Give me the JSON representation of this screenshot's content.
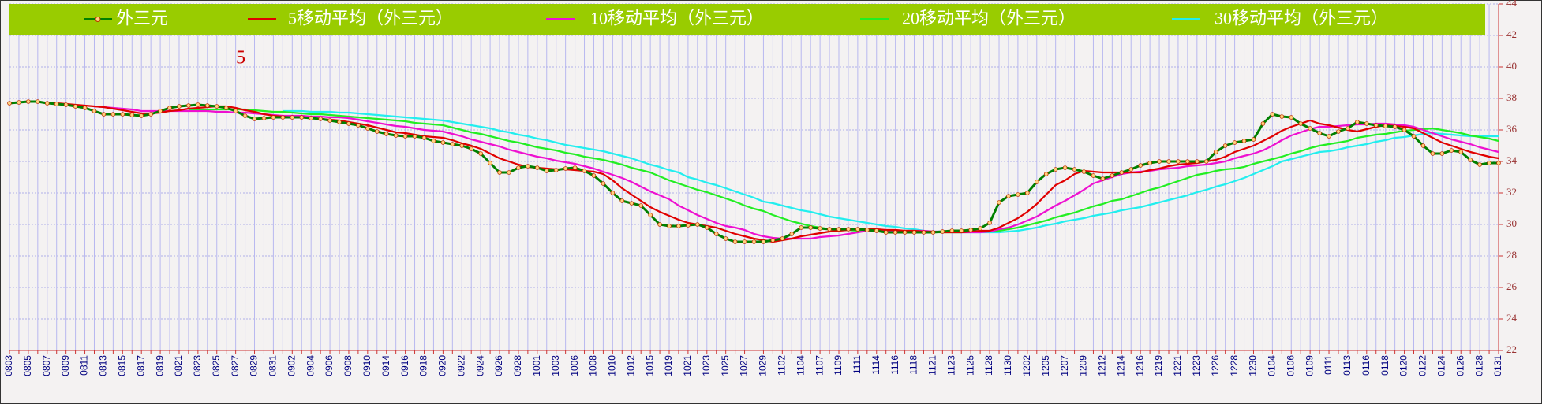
{
  "chart_data": {
    "type": "line",
    "annotation": "5",
    "categories": [
      "0803",
      null,
      "0805",
      null,
      "0807",
      null,
      "0809",
      null,
      "0811",
      null,
      "0813",
      null,
      "0815",
      null,
      "0817",
      null,
      "0819",
      null,
      "0821",
      null,
      "0823",
      null,
      "0825",
      null,
      "0827",
      null,
      "0829",
      null,
      "0831",
      null,
      "0902",
      null,
      "0904",
      null,
      "0906",
      null,
      "0908",
      null,
      "0910",
      null,
      "0914",
      null,
      "0916",
      null,
      "0918",
      null,
      "0920",
      null,
      "0922",
      null,
      "0924",
      null,
      "0926",
      null,
      "0928",
      null,
      "1001",
      null,
      "1003",
      null,
      "1006",
      null,
      "1008",
      null,
      "1010",
      null,
      "1012",
      null,
      "1015",
      null,
      "1019",
      null,
      "1021",
      null,
      "1023",
      null,
      "1025",
      null,
      "1027",
      null,
      "1029",
      null,
      "1102",
      null,
      "1104",
      null,
      "1107",
      null,
      "1109",
      null,
      "1111",
      null,
      "1114",
      null,
      "1116",
      null,
      "1118",
      null,
      "1121",
      null,
      "1123",
      null,
      "1125",
      null,
      "1128",
      null,
      "1130",
      null,
      "1202",
      null,
      "1205",
      null,
      "1207",
      null,
      "1209",
      null,
      "1212",
      null,
      "1214",
      null,
      "1216",
      null,
      "1219",
      null,
      "1221",
      null,
      "1223",
      null,
      "1226",
      null,
      "1228",
      null,
      "1230",
      null,
      "0104",
      null,
      "0106",
      null,
      "0109",
      null,
      "0111",
      null,
      "0113",
      null,
      "0116",
      null,
      "0118",
      null,
      "0120",
      null,
      "0122",
      null,
      "0124",
      null,
      "0126",
      null,
      "0128",
      null,
      "0131"
    ],
    "series": [
      {
        "name": "外三元",
        "color": "#008000",
        "markers": true,
        "values": [
          37.7,
          37.75,
          37.8,
          37.8,
          37.7,
          37.65,
          37.6,
          37.5,
          37.4,
          37.2,
          37.0,
          37.0,
          37.0,
          36.95,
          36.9,
          37.0,
          37.2,
          37.4,
          37.5,
          37.55,
          37.6,
          37.55,
          37.5,
          37.4,
          37.2,
          36.9,
          36.7,
          36.75,
          36.8,
          36.8,
          36.8,
          36.8,
          36.75,
          36.7,
          36.6,
          36.5,
          36.4,
          36.3,
          36.1,
          35.9,
          35.75,
          35.65,
          35.6,
          35.6,
          35.5,
          35.3,
          35.2,
          35.1,
          35.0,
          34.8,
          34.5,
          33.9,
          33.3,
          33.3,
          33.6,
          33.7,
          33.6,
          33.4,
          33.45,
          33.55,
          33.6,
          33.4,
          33.1,
          32.6,
          32.0,
          31.5,
          31.35,
          31.2,
          30.6,
          30.0,
          29.9,
          29.9,
          29.95,
          30.0,
          29.8,
          29.4,
          29.1,
          28.9,
          28.9,
          28.9,
          28.9,
          29.0,
          29.1,
          29.4,
          29.8,
          29.8,
          29.75,
          29.7,
          29.7,
          29.7,
          29.7,
          29.65,
          29.6,
          29.5,
          29.5,
          29.5,
          29.5,
          29.5,
          29.5,
          29.55,
          29.6,
          29.6,
          29.65,
          29.75,
          30.1,
          31.4,
          31.8,
          31.9,
          32.0,
          32.7,
          33.2,
          33.5,
          33.6,
          33.5,
          33.35,
          33.1,
          32.9,
          33.1,
          33.3,
          33.5,
          33.75,
          33.9,
          34.0,
          34.0,
          34.0,
          34.0,
          34.0,
          34.0,
          34.6,
          35.0,
          35.2,
          35.3,
          35.4,
          36.4,
          37.0,
          36.85,
          36.8,
          36.4,
          36.1,
          35.8,
          35.6,
          35.9,
          36.1,
          36.5,
          36.4,
          36.3,
          36.25,
          36.2,
          36.0,
          35.6,
          35.0,
          34.5,
          34.5,
          34.7,
          34.6,
          34.1,
          33.8,
          33.9,
          33.9
        ]
      },
      {
        "name": "5移动平均（外三元）",
        "color": "#e00000",
        "values": [
          null,
          null,
          null,
          null,
          37.75,
          37.7,
          37.65,
          37.6,
          37.55,
          37.5,
          37.45,
          37.35,
          37.25,
          37.15,
          37.05,
          37.05,
          37.1,
          37.2,
          37.25,
          37.35,
          37.4,
          37.45,
          37.5,
          37.5,
          37.4,
          37.25,
          37.15,
          37.0,
          36.9,
          36.85,
          36.8,
          36.8,
          36.75,
          36.7,
          36.65,
          36.6,
          36.5,
          36.4,
          36.3,
          36.15,
          36.0,
          35.85,
          35.8,
          35.7,
          35.6,
          35.55,
          35.5,
          35.35,
          35.15,
          35.0,
          34.8,
          34.5,
          34.2,
          34.0,
          33.8,
          33.65,
          33.6,
          33.55,
          33.5,
          33.5,
          33.45,
          33.4,
          33.35,
          33.2,
          32.8,
          32.3,
          31.9,
          31.5,
          31.1,
          30.8,
          30.55,
          30.3,
          30.1,
          30.0,
          29.9,
          29.8,
          29.6,
          29.4,
          29.25,
          29.1,
          29.0,
          28.9,
          29.0,
          29.1,
          29.25,
          29.35,
          29.45,
          29.55,
          29.6,
          29.65,
          29.7,
          29.7,
          29.7,
          29.65,
          29.65,
          29.6,
          29.6,
          29.55,
          29.55,
          29.5,
          29.5,
          29.5,
          29.55,
          29.6,
          29.6,
          29.8,
          30.1,
          30.4,
          30.8,
          31.3,
          31.9,
          32.5,
          32.8,
          33.2,
          33.4,
          33.35,
          33.3,
          33.3,
          33.3,
          33.3,
          33.3,
          33.45,
          33.55,
          33.7,
          33.8,
          33.85,
          33.9,
          34.0,
          34.1,
          34.3,
          34.6,
          34.8,
          35.0,
          35.3,
          35.6,
          35.95,
          36.2,
          36.4,
          36.6,
          36.4,
          36.3,
          36.15,
          36.0,
          35.9,
          36.05,
          36.2,
          36.3,
          36.25,
          36.2,
          36.1,
          35.8,
          35.5,
          35.2,
          35.0,
          34.8,
          34.6,
          34.45,
          34.3,
          34.2
        ]
      },
      {
        "name": "10移动平均（外三元）",
        "color": "#ee10d0",
        "values": [
          null,
          null,
          null,
          null,
          null,
          null,
          null,
          null,
          null,
          37.5,
          37.45,
          37.4,
          37.35,
          37.3,
          37.2,
          37.2,
          37.2,
          37.2,
          37.2,
          37.2,
          37.2,
          37.2,
          37.15,
          37.15,
          37.1,
          37.1,
          37.05,
          37.0,
          36.95,
          36.9,
          36.9,
          36.9,
          36.85,
          36.85,
          36.8,
          36.8,
          36.75,
          36.65,
          36.55,
          36.45,
          36.35,
          36.25,
          36.2,
          36.1,
          36.0,
          35.95,
          35.9,
          35.75,
          35.6,
          35.4,
          35.25,
          35.1,
          34.95,
          34.75,
          34.6,
          34.45,
          34.3,
          34.2,
          34.05,
          33.95,
          33.85,
          33.7,
          33.55,
          33.35,
          33.15,
          32.95,
          32.7,
          32.4,
          32.1,
          31.85,
          31.6,
          31.2,
          30.9,
          30.6,
          30.35,
          30.1,
          29.9,
          29.8,
          29.65,
          29.4,
          29.25,
          29.15,
          29.1,
          29.1,
          29.1,
          29.1,
          29.2,
          29.25,
          29.3,
          29.4,
          29.5,
          29.6,
          29.6,
          29.6,
          29.6,
          29.6,
          29.6,
          29.6,
          29.55,
          29.55,
          29.55,
          29.5,
          29.5,
          29.5,
          29.55,
          29.7,
          29.8,
          30.0,
          30.25,
          30.5,
          30.85,
          31.2,
          31.5,
          31.85,
          32.2,
          32.6,
          32.8,
          33.0,
          33.2,
          33.3,
          33.35,
          33.4,
          33.5,
          33.55,
          33.6,
          33.7,
          33.75,
          33.8,
          33.9,
          34.0,
          34.2,
          34.35,
          34.5,
          34.7,
          35.0,
          35.35,
          35.65,
          35.85,
          36.05,
          36.2,
          36.2,
          36.25,
          36.3,
          36.35,
          36.35,
          36.4,
          36.4,
          36.35,
          36.3,
          36.2,
          36.0,
          35.8,
          35.6,
          35.4,
          35.25,
          35.1,
          34.9,
          34.75,
          34.6
        ]
      },
      {
        "name": "20移动平均（外三元）",
        "color": "#22ee22",
        "values": [
          null,
          null,
          null,
          null,
          null,
          null,
          null,
          null,
          null,
          null,
          null,
          null,
          null,
          null,
          null,
          null,
          null,
          null,
          null,
          37.3,
          37.3,
          37.3,
          37.3,
          37.3,
          37.3,
          37.3,
          37.25,
          37.2,
          37.15,
          37.15,
          37.1,
          37.05,
          37.0,
          37.0,
          36.95,
          36.9,
          36.85,
          36.8,
          36.75,
          36.7,
          36.65,
          36.6,
          36.55,
          36.45,
          36.4,
          36.35,
          36.3,
          36.15,
          36.0,
          35.85,
          35.75,
          35.6,
          35.45,
          35.3,
          35.2,
          35.05,
          34.9,
          34.8,
          34.7,
          34.55,
          34.45,
          34.3,
          34.2,
          34.1,
          33.95,
          33.8,
          33.6,
          33.45,
          33.3,
          33.05,
          32.8,
          32.6,
          32.4,
          32.2,
          32.05,
          31.85,
          31.65,
          31.45,
          31.2,
          31.0,
          30.85,
          30.6,
          30.4,
          30.2,
          30.05,
          29.9,
          29.8,
          29.7,
          29.65,
          29.65,
          29.6,
          29.6,
          29.55,
          29.55,
          29.5,
          29.5,
          29.5,
          29.5,
          29.5,
          29.5,
          29.5,
          29.5,
          29.55,
          29.55,
          29.6,
          29.6,
          29.7,
          29.8,
          29.95,
          30.1,
          30.25,
          30.45,
          30.6,
          30.75,
          30.95,
          31.15,
          31.3,
          31.5,
          31.6,
          31.8,
          32.0,
          32.2,
          32.35,
          32.55,
          32.75,
          32.95,
          33.15,
          33.25,
          33.4,
          33.5,
          33.55,
          33.65,
          33.85,
          34.0,
          34.15,
          34.3,
          34.5,
          34.65,
          34.85,
          35.0,
          35.1,
          35.2,
          35.3,
          35.5,
          35.6,
          35.7,
          35.75,
          35.85,
          35.95,
          36.0,
          36.05,
          36.1,
          36.0,
          35.9,
          35.8,
          35.65,
          35.55,
          35.45,
          35.3
        ]
      },
      {
        "name": "30移动平均（外三元）",
        "color": "#22eeee",
        "values": [
          null,
          null,
          null,
          null,
          null,
          null,
          null,
          null,
          null,
          null,
          null,
          null,
          null,
          null,
          null,
          null,
          null,
          null,
          null,
          null,
          null,
          null,
          null,
          null,
          null,
          null,
          null,
          null,
          null,
          37.2,
          37.2,
          37.2,
          37.15,
          37.15,
          37.15,
          37.1,
          37.1,
          37.05,
          37.0,
          36.95,
          36.9,
          36.85,
          36.8,
          36.75,
          36.7,
          36.65,
          36.6,
          36.5,
          36.4,
          36.3,
          36.2,
          36.1,
          35.95,
          35.85,
          35.7,
          35.6,
          35.45,
          35.35,
          35.2,
          35.05,
          34.95,
          34.85,
          34.75,
          34.65,
          34.5,
          34.35,
          34.2,
          34.0,
          33.8,
          33.65,
          33.45,
          33.3,
          33.0,
          32.85,
          32.65,
          32.5,
          32.3,
          32.1,
          31.9,
          31.7,
          31.45,
          31.35,
          31.2,
          31.05,
          30.9,
          30.8,
          30.65,
          30.5,
          30.4,
          30.3,
          30.2,
          30.1,
          30.0,
          29.9,
          29.85,
          29.75,
          29.7,
          29.6,
          29.55,
          29.55,
          29.5,
          29.5,
          29.5,
          29.5,
          29.5,
          29.5,
          29.55,
          29.6,
          29.7,
          29.8,
          29.95,
          30.05,
          30.2,
          30.3,
          30.4,
          30.55,
          30.65,
          30.75,
          30.9,
          31.0,
          31.1,
          31.25,
          31.4,
          31.55,
          31.7,
          31.85,
          32.05,
          32.2,
          32.4,
          32.55,
          32.75,
          32.95,
          33.2,
          33.45,
          33.7,
          34.0,
          34.15,
          34.3,
          34.45,
          34.6,
          34.65,
          34.75,
          34.9,
          35.0,
          35.1,
          35.25,
          35.35,
          35.5,
          35.55,
          35.65,
          35.75,
          35.8,
          35.75,
          35.7,
          35.65,
          35.6,
          35.6,
          35.6,
          35.6
        ]
      }
    ],
    "ylim": [
      22,
      44
    ],
    "yticks": [
      22,
      24,
      26,
      28,
      30,
      32,
      34,
      36,
      38,
      40,
      42,
      44
    ],
    "grid": true,
    "legend": "top"
  }
}
